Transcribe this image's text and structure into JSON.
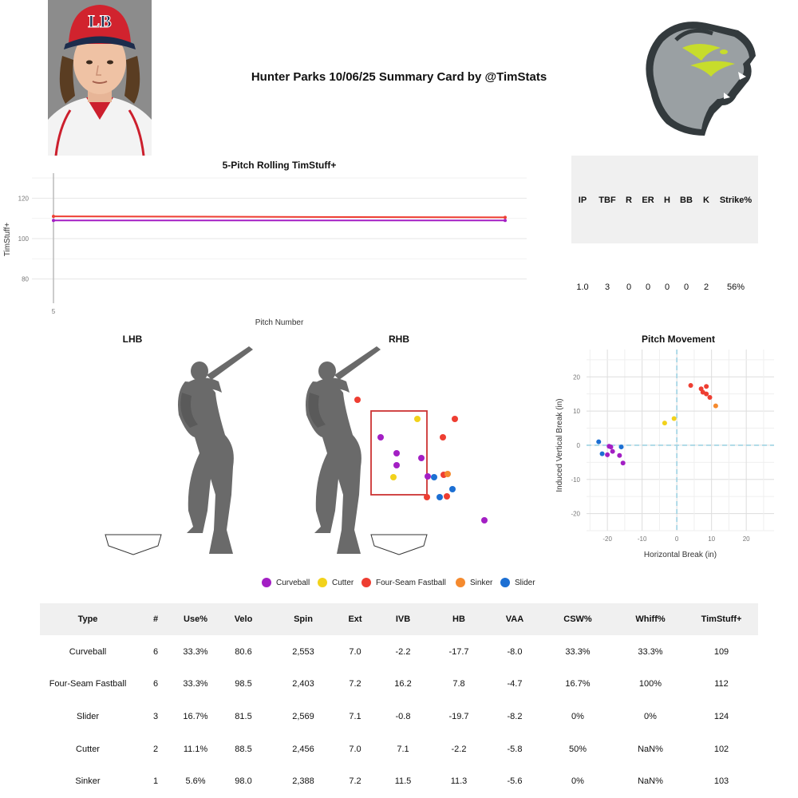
{
  "title": "Hunter Parks 10/06/25 Summary Card by @TimStats",
  "colors": {
    "Curveball": "#a31fc4",
    "Cutter": "#f2d21b",
    "Four-Seam Fastball": "#ee3e32",
    "Sinker": "#f58a2e",
    "Slider": "#1c6fd3",
    "zone": "#cc3333"
  },
  "stat_line": {
    "headers": [
      "IP",
      "TBF",
      "R",
      "ER",
      "H",
      "BB",
      "K",
      "Strike%"
    ],
    "values": [
      "1.0",
      "3",
      "0",
      "0",
      "0",
      "0",
      "2",
      "56%"
    ]
  },
  "handedness": {
    "left": "LHB",
    "right": "RHB"
  },
  "legend": [
    "Curveball",
    "Cutter",
    "Four-Seam Fastball",
    "Sinker",
    "Slider"
  ],
  "pitch_table": {
    "headers": [
      "Type",
      "#",
      "Use%",
      "Velo",
      "Spin",
      "Ext",
      "IVB",
      "HB",
      "VAA",
      "CSW%",
      "Whiff%",
      "TimStuff+"
    ],
    "rows": [
      [
        "Curveball",
        "6",
        "33.3%",
        "80.6",
        "2,553",
        "7.0",
        "-2.2",
        "-17.7",
        "-8.0",
        "33.3%",
        "33.3%",
        "109"
      ],
      [
        "Four-Seam Fastball",
        "6",
        "33.3%",
        "98.5",
        "2,403",
        "7.2",
        "16.2",
        "7.8",
        "-4.7",
        "16.7%",
        "100%",
        "112"
      ],
      [
        "Slider",
        "3",
        "16.7%",
        "81.5",
        "2,569",
        "7.1",
        "-0.8",
        "-19.7",
        "-8.2",
        "0%",
        "0%",
        "124"
      ],
      [
        "Cutter",
        "2",
        "11.1%",
        "88.5",
        "2,456",
        "7.0",
        "7.1",
        "-2.2",
        "-5.8",
        "50%",
        "NaN%",
        "102"
      ],
      [
        "Sinker",
        "1",
        "5.6%",
        "98.0",
        "2,388",
        "7.2",
        "11.5",
        "11.3",
        "-5.6",
        "0%",
        "NaN%",
        "103"
      ]
    ]
  },
  "chart_data": [
    {
      "type": "line",
      "title": "5-Pitch Rolling TimStuff+",
      "xlabel": "Pitch Number",
      "ylabel": "TimStuff+",
      "x_ticks": [
        "5"
      ],
      "y_ticks": [
        "80",
        "100",
        "120"
      ],
      "xlim": [
        5,
        18
      ],
      "ylim": [
        70,
        130
      ],
      "series": [
        {
          "color": "#ee3e32",
          "x": [
            5,
            18
          ],
          "y": [
            111,
            110.5
          ]
        },
        {
          "color": "#a31fc4",
          "x": [
            5,
            18
          ],
          "y": [
            109,
            109
          ]
        }
      ]
    },
    {
      "type": "scatter",
      "title": "",
      "xlabel": "",
      "ylabel": "",
      "points": [
        {
          "pitch": "Four-Seam Fastball",
          "x": 448,
          "y": 501
        },
        {
          "pitch": "Cutter",
          "x": 523,
          "y": 525
        },
        {
          "pitch": "Four-Seam Fastball",
          "x": 570,
          "y": 525
        },
        {
          "pitch": "Curveball",
          "x": 477,
          "y": 548
        },
        {
          "pitch": "Four-Seam Fastball",
          "x": 555,
          "y": 548
        },
        {
          "pitch": "Curveball",
          "x": 497,
          "y": 568
        },
        {
          "pitch": "Curveball",
          "x": 528,
          "y": 574
        },
        {
          "pitch": "Curveball",
          "x": 497,
          "y": 583
        },
        {
          "pitch": "Cutter",
          "x": 493,
          "y": 598
        },
        {
          "pitch": "Slider",
          "x": 544,
          "y": 598
        },
        {
          "pitch": "Curveball",
          "x": 536,
          "y": 597
        },
        {
          "pitch": "Four-Seam Fastball",
          "x": 556,
          "y": 595
        },
        {
          "pitch": "Sinker",
          "x": 561,
          "y": 594
        },
        {
          "pitch": "Slider",
          "x": 567,
          "y": 613
        },
        {
          "pitch": "Four-Seam Fastball",
          "x": 535,
          "y": 623
        },
        {
          "pitch": "Slider",
          "x": 551,
          "y": 623
        },
        {
          "pitch": "Four-Seam Fastball",
          "x": 560,
          "y": 622
        },
        {
          "pitch": "Curveball",
          "x": 607,
          "y": 652
        }
      ]
    },
    {
      "type": "scatter",
      "title": "Pitch Movement",
      "xlabel": "Horizontal Break (in)",
      "ylabel": "Induced Vertical Break (in)",
      "xlim": [
        -26,
        28
      ],
      "ylim": [
        -25,
        28
      ],
      "x_ticks": [
        -20,
        -10,
        0,
        10,
        20
      ],
      "y_ticks": [
        -20,
        -10,
        0,
        10,
        20
      ],
      "points": [
        {
          "pitch": "Four-Seam Fastball",
          "x": 4,
          "y": 17.5
        },
        {
          "pitch": "Four-Seam Fastball",
          "x": 7,
          "y": 16.5
        },
        {
          "pitch": "Four-Seam Fastball",
          "x": 8.5,
          "y": 17.2
        },
        {
          "pitch": "Four-Seam Fastball",
          "x": 7.5,
          "y": 15.5
        },
        {
          "pitch": "Four-Seam Fastball",
          "x": 8.5,
          "y": 15
        },
        {
          "pitch": "Four-Seam Fastball",
          "x": 9.5,
          "y": 14
        },
        {
          "pitch": "Sinker",
          "x": 11.2,
          "y": 11.5
        },
        {
          "pitch": "Cutter",
          "x": -3.5,
          "y": 6.5
        },
        {
          "pitch": "Cutter",
          "x": -0.8,
          "y": 7.8
        },
        {
          "pitch": "Slider",
          "x": -22.5,
          "y": 1
        },
        {
          "pitch": "Slider",
          "x": -21.5,
          "y": -2.5
        },
        {
          "pitch": "Slider",
          "x": -16,
          "y": -0.5
        },
        {
          "pitch": "Curveball",
          "x": -19.5,
          "y": -0.3
        },
        {
          "pitch": "Curveball",
          "x": -19,
          "y": -0.5
        },
        {
          "pitch": "Curveball",
          "x": -20,
          "y": -2.8
        },
        {
          "pitch": "Curveball",
          "x": -18.5,
          "y": -1.8
        },
        {
          "pitch": "Curveball",
          "x": -16.5,
          "y": -3
        },
        {
          "pitch": "Curveball",
          "x": -15.5,
          "y": -5.2
        }
      ]
    }
  ]
}
